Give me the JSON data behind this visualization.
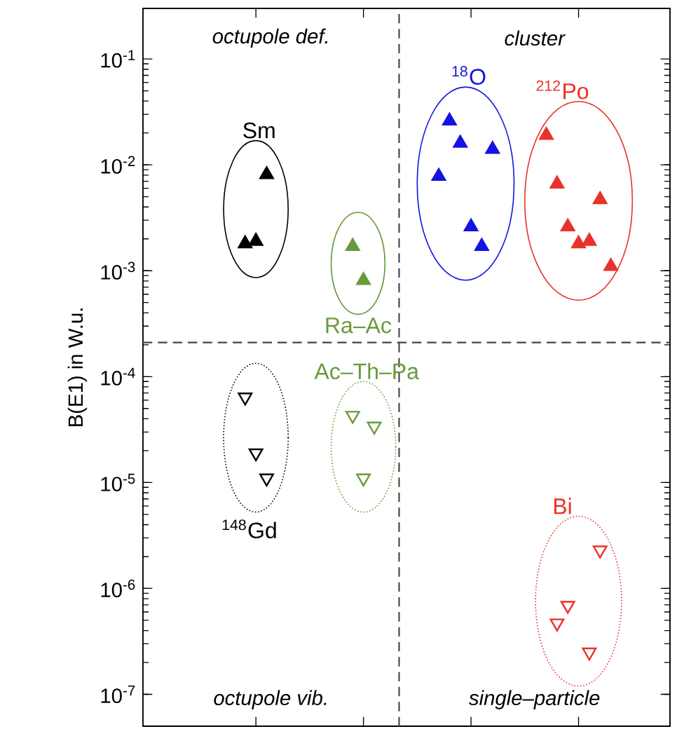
{
  "chart_data": {
    "type": "scatter",
    "ylabel": "B(E1) in W.u.",
    "log": "y",
    "grid": false,
    "tick_labels": "y",
    "categories": [
      null,
      null,
      null,
      null,
      null,
      null,
      null,
      null,
      null,
      null,
      null,
      null,
      null,
      null,
      null,
      null,
      null,
      null,
      null,
      null,
      null,
      null,
      null,
      null,
      null,
      null,
      null,
      null,
      null,
      null,
      null,
      null,
      null,
      null,
      null,
      null,
      null,
      null,
      null,
      null,
      null,
      null,
      null,
      null,
      null,
      null,
      null,
      null,
      null
    ],
    "ylim": [
      5e-08,
      0.3
    ],
    "yticks": [
      {
        "value": 1e-07,
        "label": "10$^{-7}$"
      },
      {
        "value": 1e-06,
        "label": "10$^{-6}$"
      },
      {
        "value": 1e-05,
        "label": "10$^{-5}$"
      },
      {
        "value": 0.0001,
        "label": "10$^{-4}$"
      },
      {
        "value": 0.001,
        "label": "10$^{-3}$"
      },
      {
        "value": 0.01,
        "label": "10$^{-2}$"
      },
      {
        "value": 0.1,
        "label": "10$^{-1}$"
      }
    ],
    "ref_lines": [
      {
        "axis": "y",
        "value": 0.00021,
        "color": "#444444",
        "line_style": "dashed"
      }
    ],
    "annotations": [
      "octupole def.",
      "cluster",
      "octupole vib.",
      "single–particle"
    ],
    "series": [
      {
        "name": "Sm",
        "color": "#000000",
        "marker": "triangle",
        "values": [
          null,
          null,
          null,
          null,
          null,
          null,
          null,
          null,
          null,
          0.0018,
          0.0019,
          0.0081,
          null,
          null,
          null,
          null,
          null,
          null,
          null,
          null,
          null,
          null,
          null,
          null,
          null,
          null,
          null,
          null,
          null,
          null,
          null,
          null,
          null,
          null,
          null,
          null,
          null,
          null,
          null,
          null,
          null,
          null,
          null,
          null,
          null,
          null,
          null,
          null,
          null
        ]
      },
      {
        "name": "Ra–Ac",
        "color": "#6a9a3a",
        "marker": "triangle",
        "values": [
          null,
          null,
          null,
          null,
          null,
          null,
          null,
          null,
          null,
          null,
          null,
          null,
          null,
          null,
          null,
          null,
          null,
          null,
          null,
          0.0017,
          0.00081,
          null,
          null,
          null,
          null,
          null,
          null,
          null,
          null,
          null,
          null,
          null,
          null,
          null,
          null,
          null,
          null,
          null,
          null,
          null,
          null,
          null,
          null,
          null,
          null,
          null,
          null,
          null,
          null
        ]
      },
      {
        "name": "$^{18}$O",
        "color": "#1414e0",
        "marker": "triangle",
        "values": [
          null,
          null,
          null,
          null,
          null,
          null,
          null,
          null,
          null,
          null,
          null,
          null,
          null,
          null,
          null,
          null,
          null,
          null,
          null,
          null,
          null,
          null,
          null,
          null,
          null,
          null,
          null,
          0.0078,
          0.026,
          0.016,
          0.0026,
          0.0017,
          0.014,
          null,
          null,
          null,
          null,
          null,
          null,
          null,
          null,
          null,
          null,
          null,
          null,
          null,
          null,
          null,
          null
        ]
      },
      {
        "name": "$^{212}$Po",
        "color": "#e8322a",
        "marker": "triangle",
        "values": [
          null,
          null,
          null,
          null,
          null,
          null,
          null,
          null,
          null,
          null,
          null,
          null,
          null,
          null,
          null,
          null,
          null,
          null,
          null,
          null,
          null,
          null,
          null,
          null,
          null,
          null,
          null,
          null,
          null,
          null,
          null,
          null,
          null,
          null,
          null,
          null,
          null,
          0.019,
          0.0066,
          0.0026,
          0.0018,
          0.0019,
          0.0047,
          0.0011,
          null,
          null,
          null,
          null,
          null
        ]
      },
      {
        "name": "$^{148}$Gd",
        "color": "#000000",
        "marker": "triangle down",
        "values": [
          null,
          null,
          null,
          null,
          null,
          null,
          null,
          null,
          null,
          6.4e-05,
          1.9e-05,
          1.1e-05,
          null,
          null,
          null,
          null,
          null,
          null,
          null,
          null,
          null,
          null,
          null,
          null,
          null,
          null,
          null,
          null,
          null,
          null,
          null,
          null,
          null,
          null,
          null,
          null,
          null,
          null,
          null,
          null,
          null,
          null,
          null,
          null,
          null,
          null,
          null,
          null,
          null
        ]
      },
      {
        "name": "Ac–Th–Pa",
        "color": "#6a9a3a",
        "marker": "triangle down",
        "values": [
          null,
          null,
          null,
          null,
          null,
          null,
          null,
          null,
          null,
          null,
          null,
          null,
          null,
          null,
          null,
          null,
          null,
          null,
          null,
          4.3e-05,
          1.1e-05,
          3.4e-05,
          null,
          null,
          null,
          null,
          null,
          null,
          null,
          null,
          null,
          null,
          null,
          null,
          null,
          null,
          null,
          null,
          null,
          null,
          null,
          null,
          null,
          null,
          null,
          null,
          null,
          null,
          null
        ]
      },
      {
        "name": "Bi",
        "color": "#e8322a",
        "marker": "triangle down",
        "values": [
          null,
          null,
          null,
          null,
          null,
          null,
          null,
          null,
          null,
          null,
          null,
          null,
          null,
          null,
          null,
          null,
          null,
          null,
          null,
          null,
          null,
          null,
          null,
          null,
          null,
          null,
          null,
          null,
          null,
          null,
          null,
          null,
          null,
          null,
          null,
          null,
          null,
          null,
          4.7e-07,
          6.9e-07,
          null,
          2.5e-07,
          2.3e-06,
          null,
          null,
          null,
          null,
          null,
          null
        ]
      }
    ]
  }
}
